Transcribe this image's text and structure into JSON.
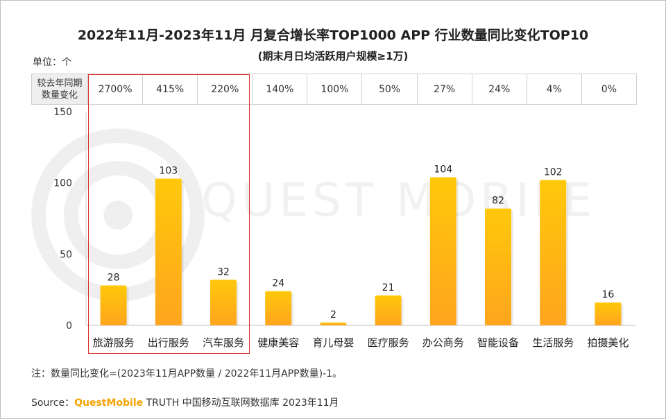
{
  "title": "2022年11月-2023年11月 月复合增长率TOP1000 APP 行业数量同比变化TOP10",
  "subtitle": "(期末月日均活跃用户规模≥1万)",
  "unit_label": "单位：个",
  "growth_table": {
    "header": [
      "较去年同期",
      "数量变化"
    ],
    "values": [
      "2700%",
      "415%",
      "220%",
      "140%",
      "100%",
      "50%",
      "27%",
      "24%",
      "4%",
      "0%"
    ]
  },
  "watermark": "QUEST MOBILE",
  "note": "注：数量同比变化=(2023年11月APP数量 / 2022年11月APP数量)-1。",
  "source": {
    "prefix": "Source：",
    "brand": "QuestMobile",
    "suffix": " TRUTH 中国移动互联网数据库 2023年11月"
  },
  "colors": {
    "bar_top": "#ffc80a",
    "bar_bottom": "#ffa51e",
    "highlight": "#d9302c",
    "brand": "#f4a300"
  },
  "chart_data": {
    "type": "bar",
    "categories": [
      "旅游服务",
      "出行服务",
      "汽车服务",
      "健康美容",
      "育儿母婴",
      "医疗服务",
      "办公商务",
      "智能设备",
      "生活服务",
      "拍摄美化"
    ],
    "values": [
      28,
      103,
      32,
      24,
      2,
      21,
      104,
      82,
      102,
      16
    ],
    "ylim": [
      0,
      150
    ],
    "yticks": [
      0,
      50,
      100,
      150
    ],
    "grid": false,
    "highlighted_categories": [
      "旅游服务",
      "出行服务",
      "汽车服务"
    ]
  }
}
